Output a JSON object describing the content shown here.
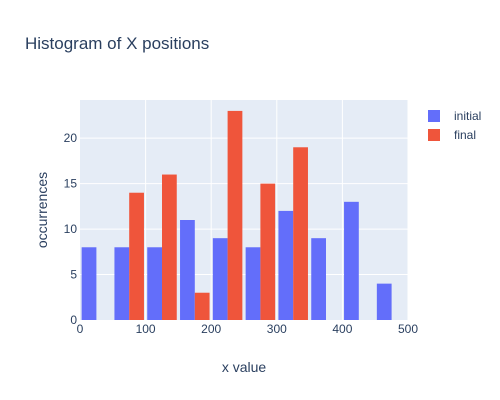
{
  "chart_data": {
    "type": "bar",
    "title": "Histogram of X positions",
    "xlabel": "x value",
    "ylabel": "occurrences",
    "xlim": [
      0,
      500
    ],
    "ylim": [
      0,
      24.2
    ],
    "x_ticks": [
      0,
      100,
      200,
      300,
      400,
      500
    ],
    "y_ticks": [
      0,
      5,
      10,
      15,
      20
    ],
    "bin_width": 50,
    "bins": [
      0,
      50,
      100,
      150,
      200,
      250,
      300,
      350,
      400,
      450
    ],
    "grid": true,
    "legend_position": "top-right",
    "plot_background": "#e5ecf6",
    "series": [
      {
        "name": "initial",
        "color": "#636efa",
        "values": [
          8,
          8,
          8,
          11,
          9,
          8,
          12,
          9,
          13,
          4
        ]
      },
      {
        "name": "final",
        "color": "#ef553b",
        "values": [
          null,
          14,
          16,
          3,
          23,
          15,
          19,
          null,
          null,
          null
        ]
      }
    ]
  }
}
